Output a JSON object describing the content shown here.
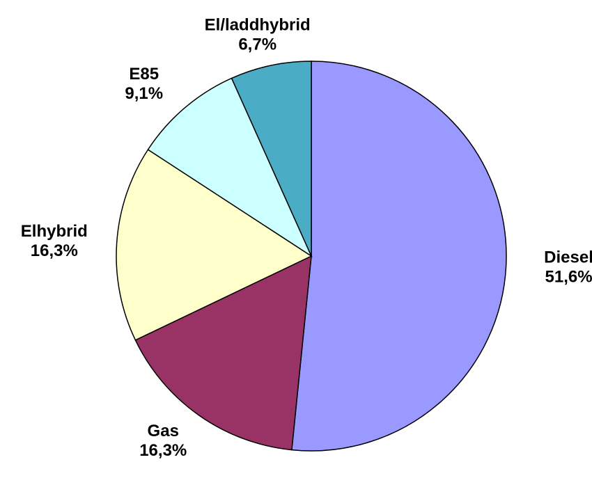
{
  "chart_data": {
    "type": "pie",
    "categories": [
      "Diesel",
      "Gas",
      "Elhybrid",
      "E85",
      "El/laddhybrid"
    ],
    "values": [
      51.6,
      16.3,
      16.3,
      9.1,
      6.7
    ],
    "value_labels": [
      "51,6%",
      "16,3%",
      "16,3%",
      "9,1%",
      "6,7%"
    ],
    "colors": [
      "#9999ff",
      "#993366",
      "#ffffcc",
      "#ccffff",
      "#4bacc6"
    ]
  }
}
